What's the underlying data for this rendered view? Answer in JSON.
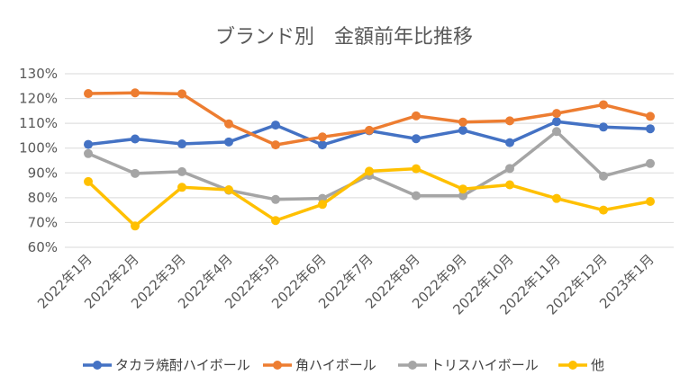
{
  "chart_data": {
    "type": "line",
    "title": "ブランド別　金額前年比推移",
    "xlabel": "",
    "ylabel": "",
    "ylim": [
      0.6,
      1.3
    ],
    "y_ticks": [
      "60%",
      "70%",
      "80%",
      "90%",
      "100%",
      "110%",
      "120%",
      "130%"
    ],
    "grid": true,
    "legend_position": "bottom",
    "categories": [
      "2022年1月",
      "2022年2月",
      "2022年3月",
      "2022年4月",
      "2022年5月",
      "2022年6月",
      "2022年7月",
      "2022年8月",
      "2022年9月",
      "2022年10月",
      "2022年11月",
      "2022年12月",
      "2023年1月"
    ],
    "series": [
      {
        "name": "タカラ焼酎ハイボール",
        "color": "#4472C4",
        "values": [
          1.015,
          1.037,
          1.017,
          1.025,
          1.093,
          1.013,
          1.07,
          1.038,
          1.072,
          1.022,
          1.107,
          1.085,
          1.078
        ]
      },
      {
        "name": "角ハイボール",
        "color": "#ED7D31",
        "values": [
          1.22,
          1.223,
          1.219,
          1.098,
          1.013,
          1.045,
          1.072,
          1.13,
          1.105,
          1.11,
          1.14,
          1.175,
          1.128
        ]
      },
      {
        "name": "トリスハイボール",
        "color": "#A5A5A5",
        "values": [
          0.978,
          0.898,
          0.905,
          0.83,
          0.793,
          0.797,
          0.89,
          0.808,
          0.808,
          0.918,
          1.067,
          0.887,
          0.938
        ]
      },
      {
        "name": "他",
        "color": "#FFC000",
        "values": [
          0.865,
          0.686,
          0.842,
          0.832,
          0.708,
          0.773,
          0.907,
          0.917,
          0.835,
          0.852,
          0.797,
          0.75,
          0.785
        ]
      }
    ]
  }
}
